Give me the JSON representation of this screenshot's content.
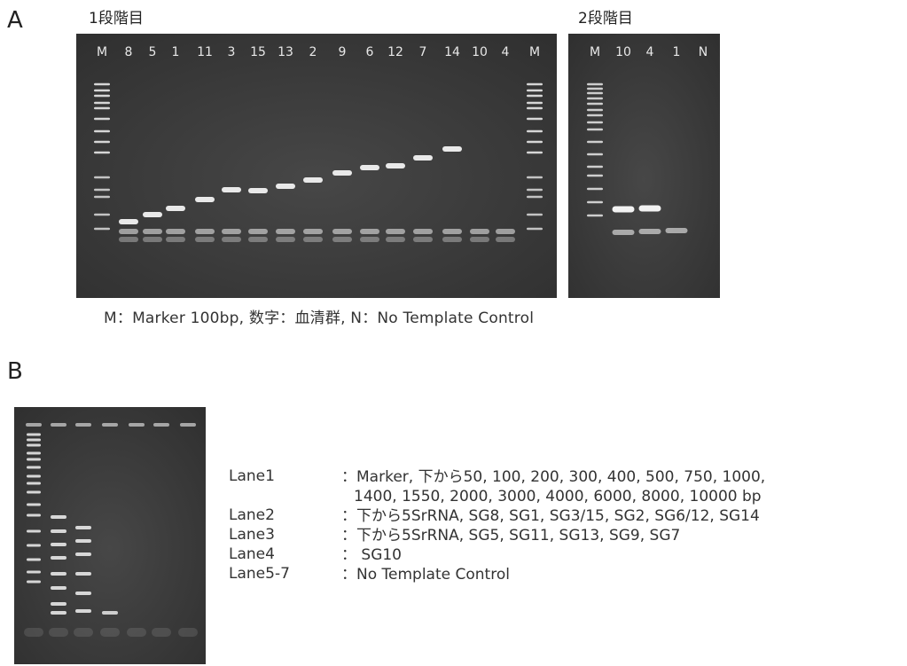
{
  "panel_a": {
    "letter": "A",
    "stage1_title": "1段階目",
    "stage2_title": "2段階目",
    "gel1_lanes": [
      "M",
      "8",
      "5",
      "1",
      "11",
      "3",
      "15",
      "13",
      "2",
      "9",
      "6",
      "12",
      "7",
      "14",
      "10",
      "4",
      "M"
    ],
    "gel2_lanes": [
      "M",
      "10",
      "4",
      "1",
      "N"
    ],
    "caption": "M：Marker 100bp, 数字：血清群, N：No Template Control"
  },
  "panel_b": {
    "letter": "B",
    "legend": [
      {
        "lane": "Lane1",
        "desc": "：Marker, 下から50, 100, 200, 300, 400, 500, 750, 1000,",
        "desc2": "1400, 1550, 2000, 3000, 4000, 6000, 8000, 10000 bp"
      },
      {
        "lane": "Lane2",
        "desc": "：下から5SrRNA, SG8, SG1, SG3/15, SG2, SG6/12, SG14"
      },
      {
        "lane": "Lane3",
        "desc": "：下から5SrRNA, SG5, SG11, SG13, SG9, SG7"
      },
      {
        "lane": "Lane4",
        "desc": "： SG10"
      },
      {
        "lane": "Lane5-7",
        "desc": "：No Template Control"
      }
    ]
  },
  "colors": {
    "gel_background": "#3c3c3c",
    "band": "#f2f2f2",
    "lane_label": "#e8e8e8"
  }
}
